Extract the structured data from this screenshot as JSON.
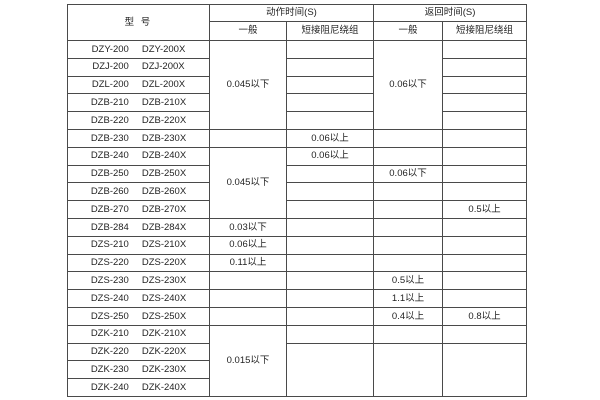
{
  "table": {
    "headers": {
      "model": "型  号",
      "action_time": "动作时间(S)",
      "return_time": "返回时间(S)",
      "action_general": "一般",
      "action_damping": "短接阻尼绕组",
      "return_general": "一般",
      "return_damping": "短接阻尼绕组"
    },
    "rows": [
      [
        "DZY-200",
        "DZY-200X"
      ],
      [
        "DZJ-200",
        "DZJ-200X"
      ],
      [
        "DZL-200",
        "DZL-200X"
      ],
      [
        "DZB-210",
        "DZB-210X"
      ],
      [
        "DZB-220",
        "DZB-220X"
      ],
      [
        "DZB-230",
        "DZB-230X"
      ],
      [
        "DZB-240",
        "DZB-240X"
      ],
      [
        "DZB-250",
        "DZB-250X"
      ],
      [
        "DZB-260",
        "DZB-260X"
      ],
      [
        "DZB-270",
        "DZB-270X"
      ],
      [
        "DZB-284",
        "DZB-284X"
      ],
      [
        "DZS-210",
        "DZS-210X"
      ],
      [
        "DZS-220",
        "DZS-220X"
      ],
      [
        "DZS-230",
        "DZS-230X"
      ],
      [
        "DZS-240",
        "DZS-240X"
      ],
      [
        "DZS-250",
        "DZS-250X"
      ],
      [
        "DZK-210",
        "DZK-210X"
      ],
      [
        "DZK-220",
        "DZK-220X"
      ],
      [
        "DZK-230",
        "DZK-230X"
      ],
      [
        "DZK-240",
        "DZK-240X"
      ]
    ],
    "columns": {
      "action_general": [
        {
          "span": 5,
          "text": "0.045以下"
        },
        {
          "span": 1,
          "text": ""
        },
        {
          "span": 4,
          "text": "0.045以下"
        },
        {
          "span": 1,
          "text": "0.03以下"
        },
        {
          "span": 1,
          "text": "0.06以上"
        },
        {
          "span": 1,
          "text": "0.11以上"
        },
        {
          "span": 1,
          "text": ""
        },
        {
          "span": 1,
          "text": ""
        },
        {
          "span": 1,
          "text": ""
        },
        {
          "span": 4,
          "text": "0.015以下"
        }
      ],
      "action_damping": [
        {
          "span": 1,
          "text": ""
        },
        {
          "span": 1,
          "text": ""
        },
        {
          "span": 1,
          "text": ""
        },
        {
          "span": 1,
          "text": ""
        },
        {
          "span": 1,
          "text": ""
        },
        {
          "span": 1,
          "text": "0.06以上"
        },
        {
          "span": 1,
          "text": "0.06以上"
        },
        {
          "span": 1,
          "text": ""
        },
        {
          "span": 1,
          "text": ""
        },
        {
          "span": 1,
          "text": ""
        },
        {
          "span": 1,
          "text": ""
        },
        {
          "span": 1,
          "text": ""
        },
        {
          "span": 1,
          "text": ""
        },
        {
          "span": 1,
          "text": ""
        },
        {
          "span": 1,
          "text": ""
        },
        {
          "span": 1,
          "text": ""
        },
        {
          "span": 1,
          "text": ""
        },
        {
          "span": 3,
          "text": ""
        }
      ],
      "return_general": [
        {
          "span": 5,
          "text": "0.06以下"
        },
        {
          "span": 1,
          "text": ""
        },
        {
          "span": 1,
          "text": ""
        },
        {
          "span": 1,
          "text": "0.06以下"
        },
        {
          "span": 1,
          "text": ""
        },
        {
          "span": 1,
          "text": ""
        },
        {
          "span": 1,
          "text": ""
        },
        {
          "span": 1,
          "text": ""
        },
        {
          "span": 1,
          "text": ""
        },
        {
          "span": 1,
          "text": "0.5以上"
        },
        {
          "span": 1,
          "text": "1.1以上"
        },
        {
          "span": 1,
          "text": "0.4以上"
        },
        {
          "span": 1,
          "text": ""
        },
        {
          "span": 3,
          "text": ""
        }
      ],
      "return_damping": [
        {
          "span": 1,
          "text": ""
        },
        {
          "span": 1,
          "text": ""
        },
        {
          "span": 1,
          "text": ""
        },
        {
          "span": 1,
          "text": ""
        },
        {
          "span": 1,
          "text": ""
        },
        {
          "span": 1,
          "text": ""
        },
        {
          "span": 1,
          "text": ""
        },
        {
          "span": 1,
          "text": ""
        },
        {
          "span": 1,
          "text": ""
        },
        {
          "span": 1,
          "text": "0.5以上"
        },
        {
          "span": 1,
          "text": ""
        },
        {
          "span": 1,
          "text": ""
        },
        {
          "span": 1,
          "text": ""
        },
        {
          "span": 1,
          "text": ""
        },
        {
          "span": 1,
          "text": ""
        },
        {
          "span": 1,
          "text": "0.8以上"
        },
        {
          "span": 1,
          "text": ""
        },
        {
          "span": 3,
          "text": ""
        }
      ]
    }
  }
}
